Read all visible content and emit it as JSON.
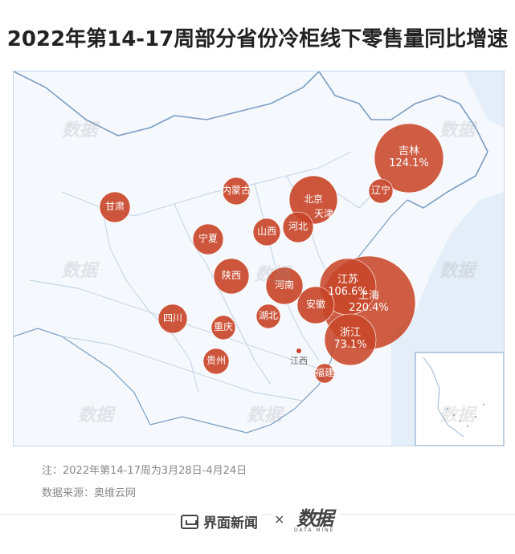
{
  "title": "2022年第14-17周部分省份冷柜线下零售量同比增速",
  "note": "注：2022年第14-17周为3月28日-4月24日",
  "source": "数据来源：奥维云网",
  "footer": {
    "brand1": "界面新闻",
    "times": "×",
    "brand2": "数据",
    "brand2_sub": "DATA MINE"
  },
  "watermark": "数据",
  "colors": {
    "bubble": "#c8472a",
    "bubble_stroke": "#ffffff",
    "map_bg": "#f5f9fd",
    "land": "#ffffff",
    "sea": "#e4eef8",
    "border": "#a9bfd9"
  },
  "bubbles": [
    {
      "name": "吉林",
      "value": "124.1%"
    },
    {
      "name": "辽宁",
      "value": ""
    },
    {
      "name": "北京",
      "value": ""
    },
    {
      "name": "天津",
      "value": ""
    },
    {
      "name": "内蒙古",
      "value": ""
    },
    {
      "name": "甘肃",
      "value": ""
    },
    {
      "name": "宁夏",
      "value": ""
    },
    {
      "name": "山西",
      "value": ""
    },
    {
      "name": "河北",
      "value": ""
    },
    {
      "name": "陕西",
      "value": ""
    },
    {
      "name": "河南",
      "value": ""
    },
    {
      "name": "江苏",
      "value": "106.6%"
    },
    {
      "name": "上海",
      "value": "220.4%"
    },
    {
      "name": "安徽",
      "value": ""
    },
    {
      "name": "浙江",
      "value": "73.1%"
    },
    {
      "name": "四川",
      "value": ""
    },
    {
      "name": "重庆",
      "value": ""
    },
    {
      "name": "湖北",
      "value": ""
    },
    {
      "name": "贵州",
      "value": ""
    },
    {
      "name": "福建",
      "value": ""
    }
  ],
  "plain_labels": [
    {
      "name": "江西"
    }
  ]
}
